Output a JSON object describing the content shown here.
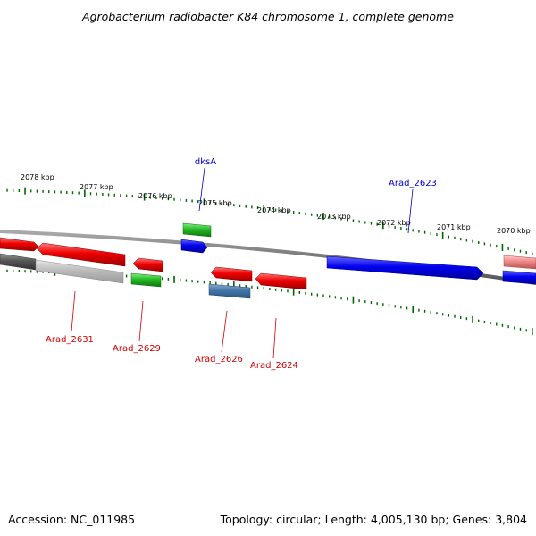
{
  "title": "Agrobacterium radiobacter K84 chromosome 1, complete genome",
  "footer": {
    "accession": "Accession: NC_011985",
    "summary": "Topology: circular; Length: 4,005,130 bp; Genes: 3,804"
  },
  "colors": {
    "label_red": "#cc0000",
    "label_blue": "#0000cc",
    "tick_green": "#006600",
    "backbone": "#777777"
  },
  "tick_labels": [
    "2078 kbp",
    "2077 kbp",
    "2076 kbp",
    "2075 kbp",
    "2074 kbp",
    "2073 kbp",
    "2072 kbp",
    "2071 kbp",
    "2070 kbp"
  ],
  "gene_labels": [
    {
      "text": "dksA",
      "color": "blue"
    },
    {
      "text": "Arad_2623",
      "color": "blue"
    },
    {
      "text": "Arad_2631",
      "color": "red"
    },
    {
      "text": "Arad_2629",
      "color": "red"
    },
    {
      "text": "Arad_2626",
      "color": "red"
    },
    {
      "text": "Arad_2624",
      "color": "red"
    }
  ]
}
